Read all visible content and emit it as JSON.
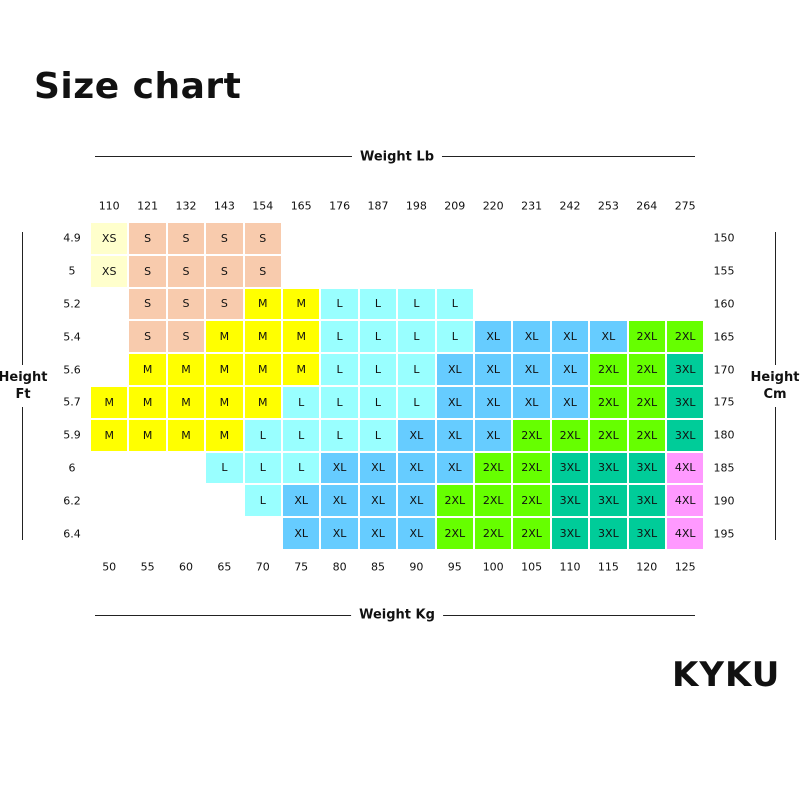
{
  "title": "Size chart",
  "brand": "KYKU",
  "chart_data": {
    "type": "table",
    "top_axis_label": "Weight Lb",
    "bottom_axis_label": "Weight Kg",
    "left_axis_label": [
      "Height",
      "Ft"
    ],
    "right_axis_label": [
      "Height",
      "Cm"
    ],
    "weight_lb": [
      "110",
      "121",
      "132",
      "143",
      "154",
      "165",
      "176",
      "187",
      "198",
      "209",
      "220",
      "231",
      "242",
      "253",
      "264",
      "275"
    ],
    "weight_kg": [
      "50",
      "55",
      "60",
      "65",
      "70",
      "75",
      "80",
      "85",
      "90",
      "95",
      "100",
      "105",
      "110",
      "115",
      "120",
      "125"
    ],
    "height_ft": [
      "4.9",
      "5",
      "5.2",
      "5.4",
      "5.6",
      "5.7",
      "5.9",
      "6",
      "6.2",
      "6.4"
    ],
    "height_cm": [
      "150",
      "155",
      "160",
      "165",
      "170",
      "175",
      "180",
      "185",
      "190",
      "195"
    ],
    "sizes": [
      [
        "XS",
        "S",
        "S",
        "S",
        "S",
        "",
        "",
        "",
        "",
        "",
        "",
        "",
        "",
        "",
        "",
        ""
      ],
      [
        "XS",
        "S",
        "S",
        "S",
        "S",
        "",
        "",
        "",
        "",
        "",
        "",
        "",
        "",
        "",
        "",
        ""
      ],
      [
        "",
        "S",
        "S",
        "S",
        "M",
        "M",
        "L",
        "L",
        "L",
        "L",
        "",
        "",
        "",
        "",
        "",
        ""
      ],
      [
        "",
        "S",
        "S",
        "M",
        "M",
        "M",
        "L",
        "L",
        "L",
        "L",
        "XL",
        "XL",
        "XL",
        "XL",
        "2XL",
        "2XL"
      ],
      [
        "",
        "M",
        "M",
        "M",
        "M",
        "M",
        "L",
        "L",
        "L",
        "XL",
        "XL",
        "XL",
        "XL",
        "2XL",
        "2XL",
        "3XL"
      ],
      [
        "M",
        "M",
        "M",
        "M",
        "M",
        "L",
        "L",
        "L",
        "L",
        "XL",
        "XL",
        "XL",
        "XL",
        "2XL",
        "2XL",
        "3XL"
      ],
      [
        "M",
        "M",
        "M",
        "M",
        "L",
        "L",
        "L",
        "L",
        "XL",
        "XL",
        "XL",
        "2XL",
        "2XL",
        "2XL",
        "2XL",
        "3XL"
      ],
      [
        "",
        "",
        "",
        "L",
        "L",
        "L",
        "XL",
        "XL",
        "XL",
        "XL",
        "2XL",
        "2XL",
        "3XL",
        "3XL",
        "3XL",
        "4XL"
      ],
      [
        "",
        "",
        "",
        "",
        "L",
        "XL",
        "XL",
        "XL",
        "XL",
        "2XL",
        "2XL",
        "2XL",
        "3XL",
        "3XL",
        "3XL",
        "4XL"
      ],
      [
        "",
        "",
        "",
        "",
        "",
        "XL",
        "XL",
        "XL",
        "XL",
        "2XL",
        "2XL",
        "2XL",
        "3XL",
        "3XL",
        "3XL",
        "4XL"
      ]
    ],
    "size_colors": {
      "XS": "#FFFFCC",
      "S": "#F8CBAD",
      "M": "#FFFF00",
      "L": "#99FFFF",
      "XL": "#66CCFF",
      "2XL": "#66FF00",
      "3XL": "#00CC99",
      "4XL": "#FF99FF"
    }
  }
}
